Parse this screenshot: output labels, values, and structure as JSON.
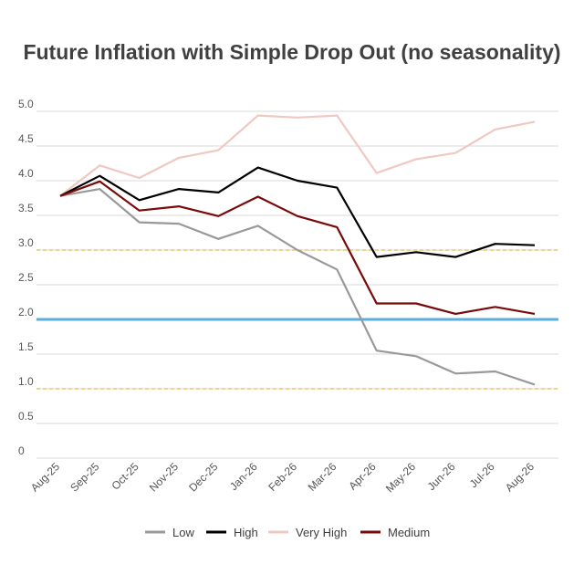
{
  "chart_data": {
    "type": "line",
    "title": "Future Inflation with Simple Drop Out (no seasonality)",
    "xlabel": "",
    "ylabel": "",
    "categories": [
      "Aug-25",
      "Sep-25",
      "Oct-25",
      "Nov-25",
      "Dec-25",
      "Jan-26",
      "Feb-26",
      "Mar-26",
      "Apr-26",
      "May-26",
      "Jun-26",
      "Jul-26",
      "Aug-26"
    ],
    "yticks": [
      "0",
      "0.5",
      "1.0",
      "1.5",
      "2.0",
      "2.5",
      "3.0",
      "3.5",
      "4.0",
      "4.5",
      "5.0"
    ],
    "ylim": [
      0,
      5.0
    ],
    "grid": true,
    "legend_position": "bottom",
    "series": [
      {
        "name": "Low",
        "color": "#999999",
        "values": [
          3.78,
          3.88,
          3.4,
          3.38,
          3.16,
          3.35,
          3.0,
          2.72,
          1.55,
          1.47,
          1.22,
          1.25,
          1.06
        ]
      },
      {
        "name": "High",
        "color": "#000000",
        "values": [
          3.78,
          4.07,
          3.72,
          3.88,
          3.83,
          4.19,
          4.0,
          3.9,
          2.9,
          2.97,
          2.9,
          3.09,
          3.07
        ]
      },
      {
        "name": "Very High",
        "color": "#f0c8c2",
        "values": [
          3.78,
          4.22,
          4.04,
          4.33,
          4.44,
          4.94,
          4.91,
          4.94,
          4.11,
          4.31,
          4.4,
          4.74,
          4.85
        ]
      },
      {
        "name": "Medium",
        "color": "#7a0a0a",
        "values": [
          3.78,
          3.99,
          3.57,
          3.63,
          3.49,
          3.77,
          3.49,
          3.33,
          2.23,
          2.23,
          2.08,
          2.18,
          2.08
        ]
      }
    ],
    "reference_lines": [
      {
        "value": 2.0,
        "color": "#5aaedc",
        "style": "solid"
      },
      {
        "value": 3.0,
        "color": "#e8c96a",
        "style": "dashed"
      },
      {
        "value": 1.0,
        "color": "#e8c96a",
        "style": "dashed"
      }
    ]
  }
}
